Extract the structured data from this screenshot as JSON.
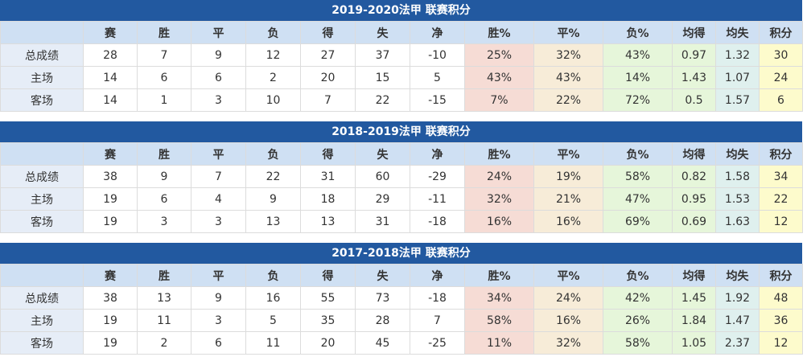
{
  "headers": [
    "",
    "赛",
    "胜",
    "平",
    "负",
    "得",
    "失",
    "净",
    "胜%",
    "平%",
    "负%",
    "均得",
    "均失",
    "积分"
  ],
  "tables": [
    {
      "title": "2019-2020法甲 联赛积分",
      "rows": [
        [
          "总成绩",
          "28",
          "7",
          "9",
          "12",
          "27",
          "37",
          "-10",
          "25%",
          "32%",
          "43%",
          "0.97",
          "1.32",
          "30"
        ],
        [
          "主场",
          "14",
          "6",
          "6",
          "2",
          "20",
          "15",
          "5",
          "43%",
          "43%",
          "14%",
          "1.43",
          "1.07",
          "24"
        ],
        [
          "客场",
          "14",
          "1",
          "3",
          "10",
          "7",
          "22",
          "-15",
          "7%",
          "22%",
          "72%",
          "0.5",
          "1.57",
          "6"
        ]
      ]
    },
    {
      "title": "2018-2019法甲 联赛积分",
      "rows": [
        [
          "总成绩",
          "38",
          "9",
          "7",
          "22",
          "31",
          "60",
          "-29",
          "24%",
          "19%",
          "58%",
          "0.82",
          "1.58",
          "34"
        ],
        [
          "主场",
          "19",
          "6",
          "4",
          "9",
          "18",
          "29",
          "-11",
          "32%",
          "21%",
          "47%",
          "0.95",
          "1.53",
          "22"
        ],
        [
          "客场",
          "19",
          "3",
          "3",
          "13",
          "13",
          "31",
          "-18",
          "16%",
          "16%",
          "69%",
          "0.69",
          "1.63",
          "12"
        ]
      ]
    },
    {
      "title": "2017-2018法甲 联赛积分",
      "rows": [
        [
          "总成绩",
          "38",
          "13",
          "9",
          "16",
          "55",
          "73",
          "-18",
          "34%",
          "24%",
          "42%",
          "1.45",
          "1.92",
          "48"
        ],
        [
          "主场",
          "19",
          "11",
          "3",
          "5",
          "35",
          "28",
          "7",
          "58%",
          "16%",
          "26%",
          "1.84",
          "1.47",
          "36"
        ],
        [
          "客场",
          "19",
          "2",
          "6",
          "11",
          "20",
          "45",
          "-25",
          "11%",
          "32%",
          "58%",
          "1.05",
          "2.37",
          "12"
        ]
      ]
    }
  ]
}
